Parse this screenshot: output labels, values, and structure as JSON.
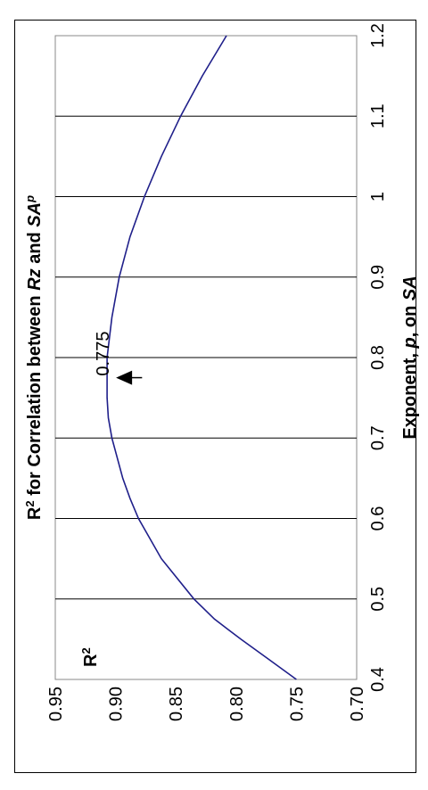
{
  "chart_data": {
    "type": "line",
    "title": "R² for Correlation between Rz and SA^p",
    "title_parts": {
      "prefix": "R",
      "sup1": "2",
      "mid": " for Correlation between ",
      "rz": "Rz",
      "and": " and ",
      "sa": "SA",
      "sup2": "p"
    },
    "xlabel_parts": {
      "a": "Exponent, ",
      "p": "p",
      "b": ", on ",
      "sa": "SA"
    },
    "ylabel_parts": {
      "base": "R",
      "sup": "2"
    },
    "xlim": [
      0.4,
      1.2
    ],
    "ylim": [
      0.7,
      0.95
    ],
    "x_ticks": [
      "0.4",
      "0.5",
      "0.6",
      "0.7",
      "0.8",
      "0.9",
      "1",
      "1.1",
      "1.2"
    ],
    "y_ticks": [
      "0.70",
      "0.75",
      "0.80",
      "0.85",
      "0.90",
      "0.95"
    ],
    "grid": true,
    "series": [
      {
        "color": "#1f1f8a",
        "x": [
          0.4,
          0.425,
          0.45,
          0.475,
          0.5,
          0.55,
          0.6,
          0.625,
          0.65,
          0.7,
          0.725,
          0.75,
          0.775,
          0.8,
          0.825,
          0.85,
          0.9,
          0.95,
          1.0,
          1.05,
          1.1,
          1.15,
          1.2
        ],
        "y": [
          0.75,
          0.773,
          0.796,
          0.818,
          0.835,
          0.862,
          0.881,
          0.888,
          0.894,
          0.903,
          0.906,
          0.907,
          0.907,
          0.907,
          0.905,
          0.903,
          0.897,
          0.888,
          0.876,
          0.862,
          0.846,
          0.828,
          0.808
        ]
      }
    ],
    "annotation": {
      "text": "0.775",
      "x": 0.775,
      "y": 0.907,
      "arrow_from_y": 0.878
    }
  }
}
